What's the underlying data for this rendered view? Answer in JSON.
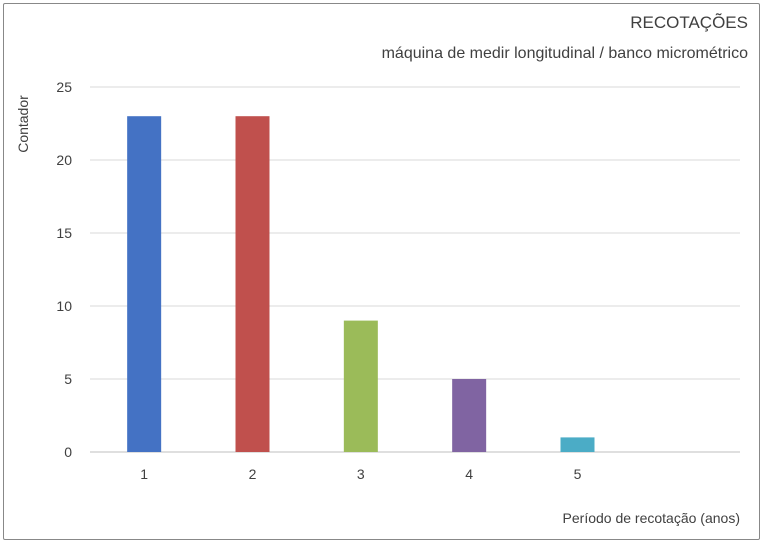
{
  "chart_data": {
    "type": "bar",
    "title": "RECOTAÇÕES",
    "subtitle": "máquina de medir longitudinal / banco micrométrico",
    "xlabel": "Período de recotação (anos)",
    "ylabel": "Contador",
    "categories": [
      "1",
      "2",
      "3",
      "4",
      "5",
      ""
    ],
    "values": [
      23,
      23,
      9,
      5,
      1,
      null
    ],
    "colors": [
      "#4472C4",
      "#C0504D",
      "#9BBB59",
      "#8064A2",
      "#4BACC6",
      null
    ],
    "ylim": [
      0,
      25
    ],
    "yticks": [
      0,
      5,
      10,
      15,
      20,
      25
    ],
    "grid": true,
    "legend": "none"
  }
}
